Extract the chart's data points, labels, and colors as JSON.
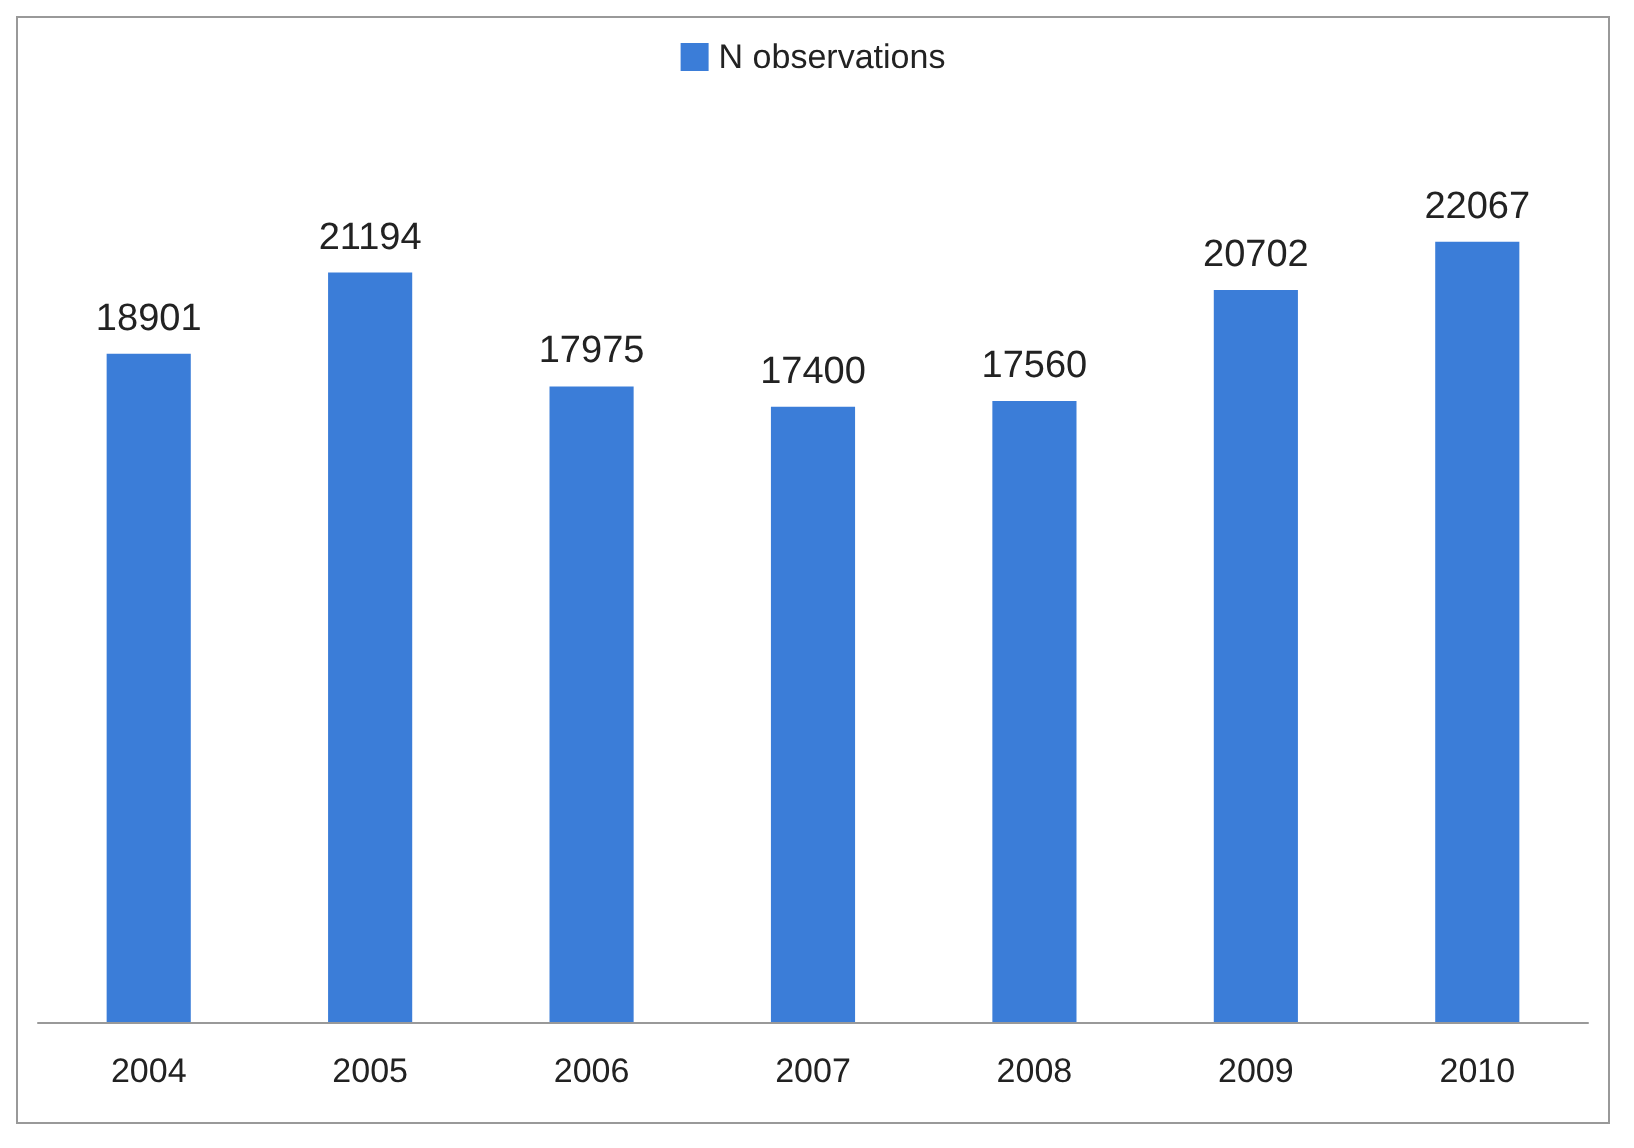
{
  "chart_data": {
    "type": "bar",
    "categories": [
      "2004",
      "2005",
      "2006",
      "2007",
      "2008",
      "2009",
      "2010"
    ],
    "series": [
      {
        "name": "N observations",
        "color": "#3b7dd8",
        "values": [
          18901,
          21194,
          17975,
          17400,
          17560,
          20702,
          22067
        ]
      }
    ],
    "data_labels": true,
    "legend": "top",
    "grid": false,
    "tick_labels": "x"
  }
}
